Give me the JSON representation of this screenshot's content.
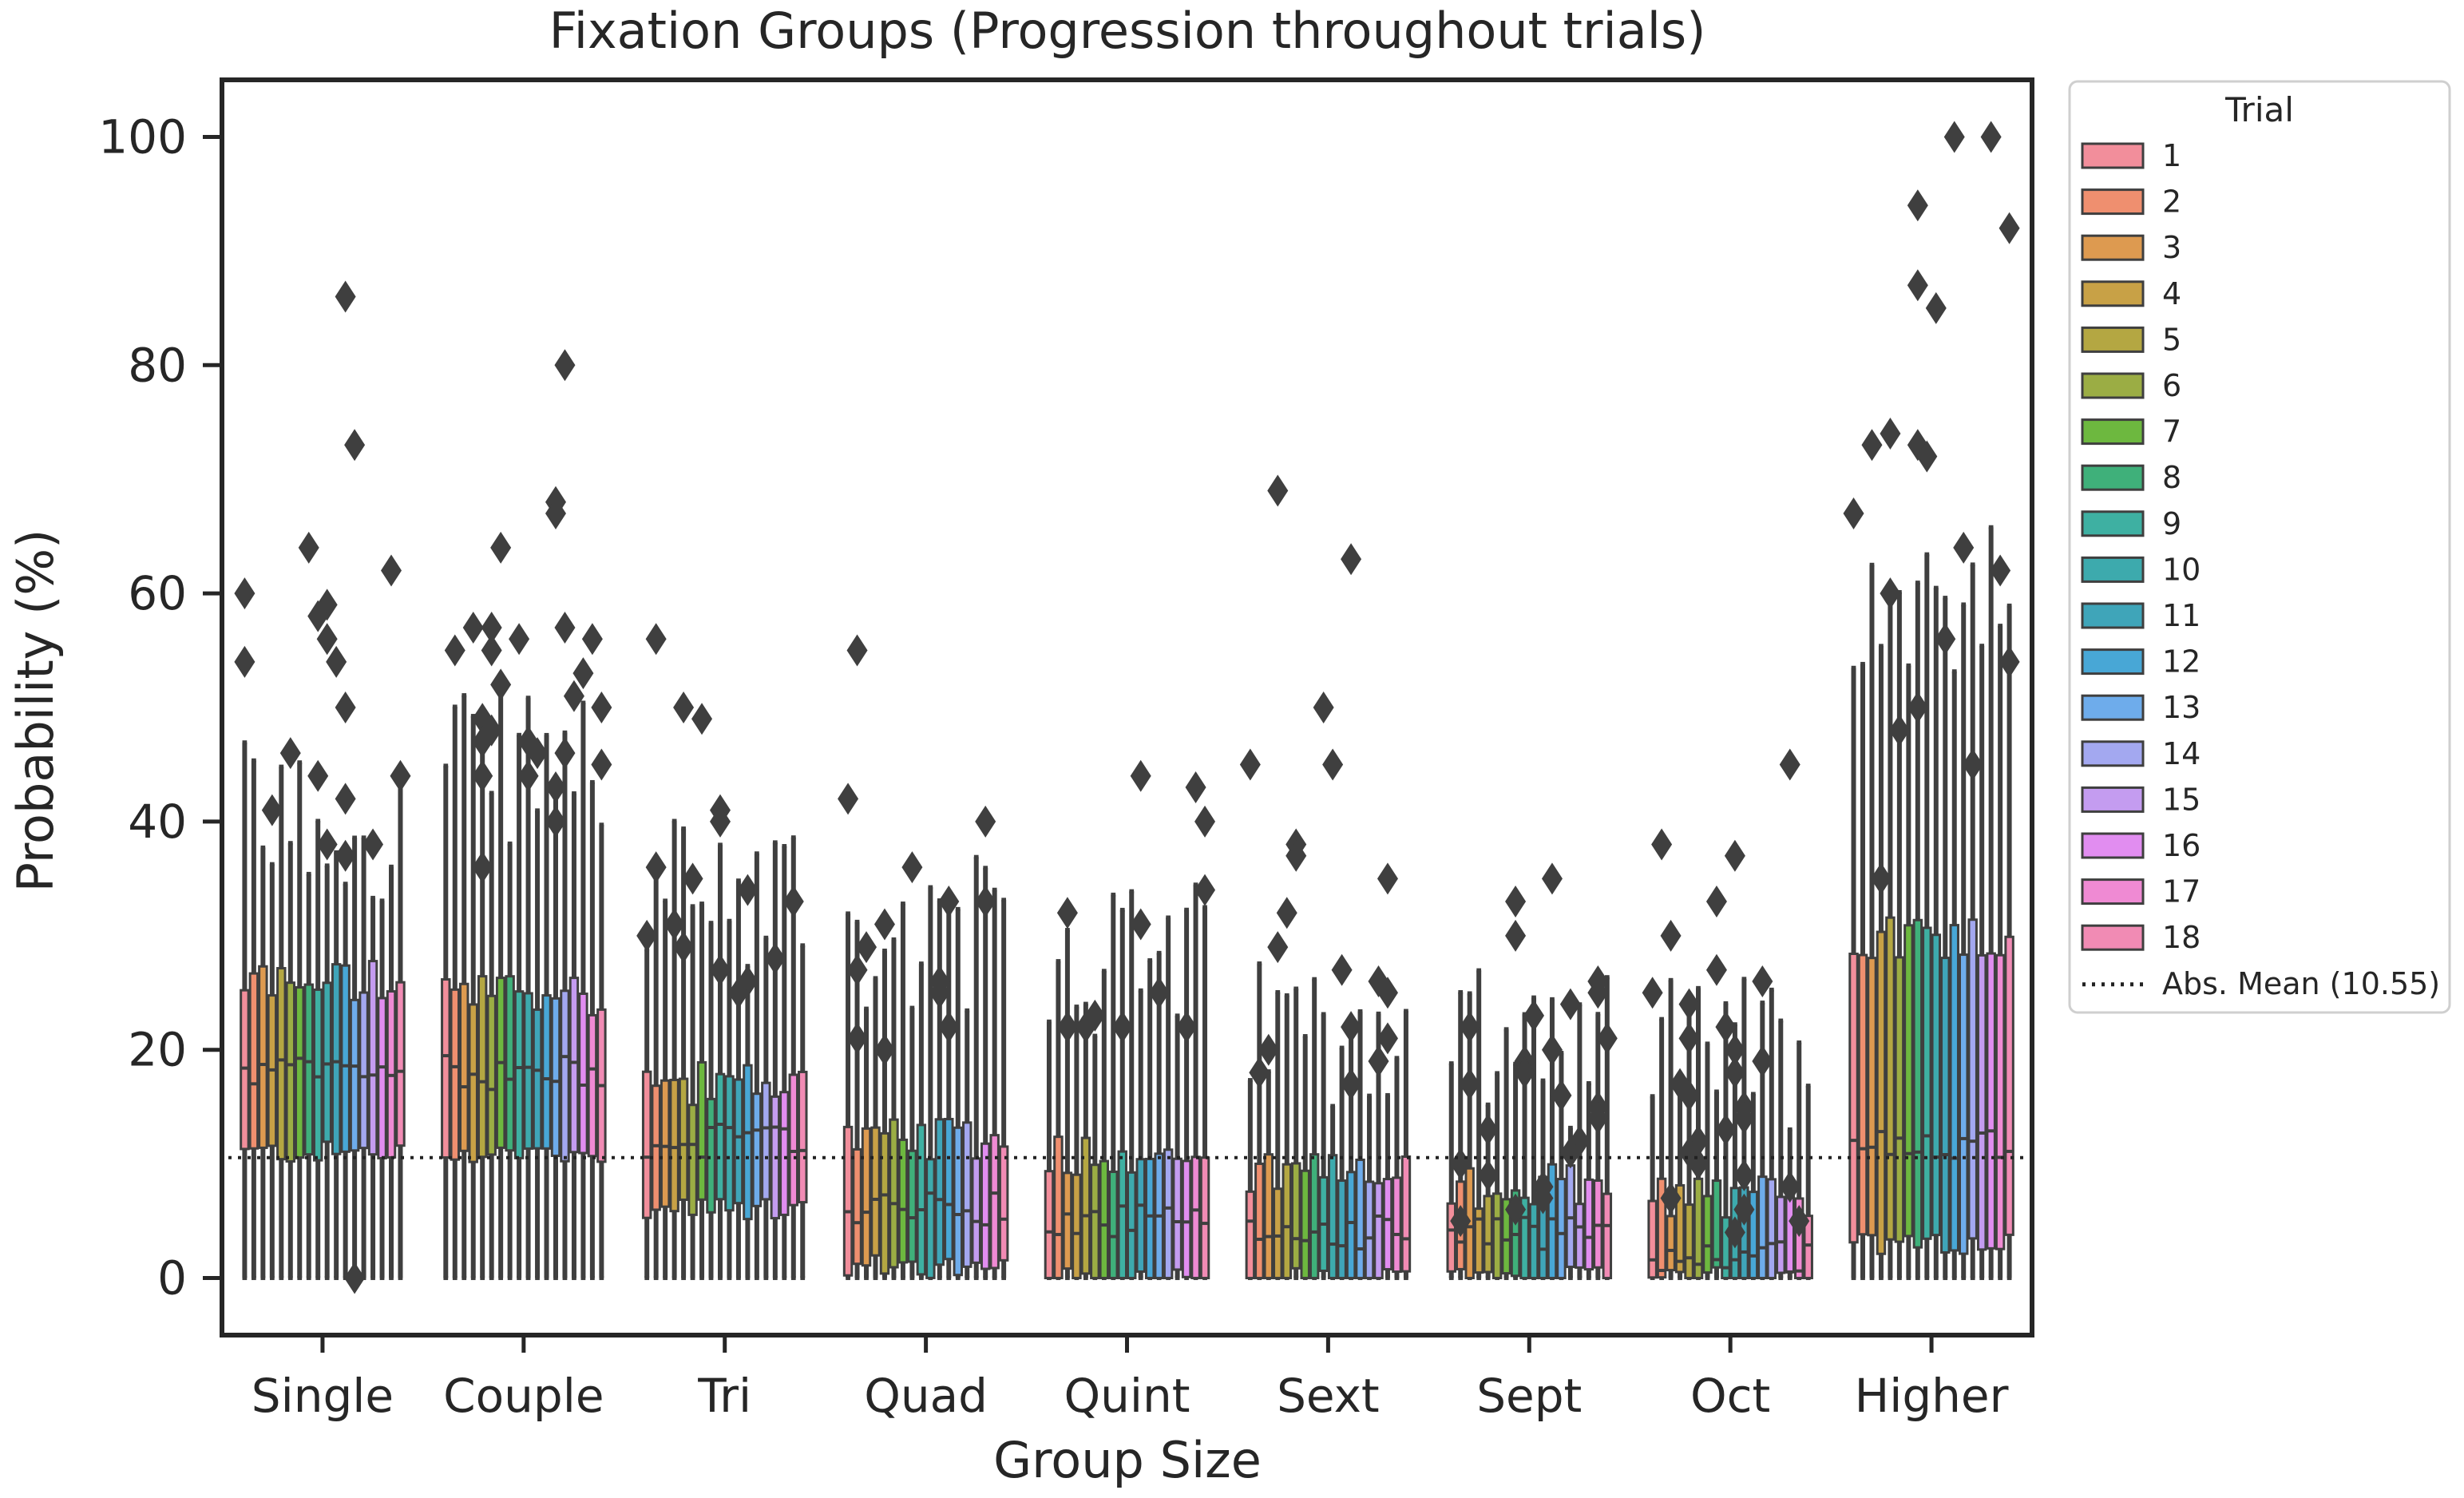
{
  "chart_data": {
    "type": "box",
    "title": "Fixation Groups (Progression throughout trials)",
    "xlabel": "Group Size",
    "ylabel": "Probability (%)",
    "ylim": [
      -5,
      105
    ],
    "yticks": [
      0,
      20,
      40,
      60,
      80,
      100
    ],
    "categories": [
      "Single",
      "Couple",
      "Tri",
      "Quad",
      "Quint",
      "Sext",
      "Sept",
      "Oct",
      "Higher"
    ],
    "legend": {
      "title": "Trial",
      "placement": "outside-right",
      "entries": [
        "1",
        "2",
        "3",
        "4",
        "5",
        "6",
        "7",
        "8",
        "9",
        "10",
        "11",
        "12",
        "13",
        "14",
        "15",
        "16",
        "17",
        "18"
      ]
    },
    "series_colors": [
      "#f28e9b",
      "#ef8f6f",
      "#dd9a50",
      "#c8a146",
      "#b4a742",
      "#9bad44",
      "#6db83f",
      "#3fb07a",
      "#3eb0a2",
      "#3daaad",
      "#3fa5b9",
      "#48a7d6",
      "#6eaceb",
      "#a3a8f0",
      "#c49cf0",
      "#e18df0",
      "#ef8ad3",
      "#f18bb4"
    ],
    "boxes_per_trial": {
      "Single": {
        "q1": 11,
        "median": 18,
        "q3": 26,
        "whisker_low": 0,
        "whisker_high": 40
      },
      "Couple": {
        "q1": 11,
        "median": 18,
        "q3": 25,
        "whisker_low": 0,
        "whisker_high": 45
      },
      "Tri": {
        "q1": 6,
        "median": 12,
        "q3": 17,
        "whisker_low": 0,
        "whisker_high": 34
      },
      "Quad": {
        "q1": 1,
        "median": 6,
        "q3": 12,
        "whisker_low": 0,
        "whisker_high": 30
      },
      "Quint": {
        "q1": 0,
        "median": 5,
        "q3": 11,
        "whisker_low": 0,
        "whisker_high": 28
      },
      "Sext": {
        "q1": 0,
        "median": 4,
        "q3": 9,
        "whisker_low": 0,
        "whisker_high": 22
      },
      "Sept": {
        "q1": 0,
        "median": 4,
        "q3": 8,
        "whisker_low": 0,
        "whisker_high": 20
      },
      "Oct": {
        "q1": 0,
        "median": 2,
        "q3": 7,
        "whisker_low": 0,
        "whisker_high": 20
      },
      "Higher": {
        "q1": 3,
        "median": 12,
        "q3": 30,
        "whisker_low": 0,
        "whisker_high": 60
      }
    },
    "outliers_sample": {
      "Single": [
        86,
        73,
        60,
        59,
        58,
        56,
        50,
        46,
        44,
        44,
        41,
        38,
        62,
        54,
        54,
        42,
        37,
        64,
        38,
        0
      ],
      "Couple": [
        80,
        68,
        67,
        64,
        57,
        56,
        56,
        55,
        55,
        53,
        52,
        50,
        49,
        47,
        46,
        45,
        44,
        57,
        57,
        51,
        48,
        47,
        46,
        44,
        43,
        40,
        36
      ],
      "Tri": [
        56,
        50,
        49,
        41,
        40,
        36,
        35,
        34,
        33,
        31,
        30,
        29,
        28,
        27,
        26,
        25
      ],
      "Quad": [
        55,
        42,
        40,
        36,
        33,
        33,
        31,
        29,
        27,
        26,
        25,
        22,
        21,
        20
      ],
      "Quint": [
        44,
        43,
        40,
        34,
        32,
        31,
        25,
        23,
        22,
        22,
        22,
        22
      ],
      "Sext": [
        69,
        63,
        50,
        45,
        45,
        38,
        37,
        35,
        32,
        29,
        27,
        26,
        25,
        22,
        21,
        20,
        19,
        18,
        17
      ],
      "Sept": [
        35,
        33,
        30,
        26,
        25,
        24,
        23,
        22,
        21,
        20,
        19,
        18,
        17,
        16,
        15,
        14,
        13,
        12,
        11,
        10,
        9,
        8,
        7,
        6,
        5
      ],
      "Oct": [
        45,
        38,
        37,
        33,
        30,
        27,
        26,
        25,
        24,
        22,
        21,
        20,
        19,
        18,
        17,
        16,
        15,
        14,
        13,
        12,
        11,
        10,
        9,
        8,
        7,
        6,
        5,
        4
      ],
      "Higher": [
        100,
        100,
        94,
        92,
        87,
        85,
        74,
        73,
        73,
        72,
        67,
        64,
        62,
        60,
        56,
        54,
        50,
        48,
        45,
        35
      ]
    },
    "reference_line": {
      "label": "Abs. Mean (10.55)",
      "value": 10.55,
      "style": "dotted"
    }
  }
}
